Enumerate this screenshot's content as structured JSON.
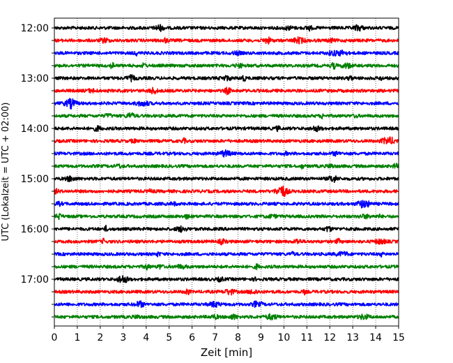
{
  "chart_data": {
    "type": "line",
    "title": "",
    "xlabel": "Zeit  [min]",
    "ylabel": "UTC (Lokalzeit = UTC + 02:00)",
    "xlim": [
      0,
      15
    ],
    "x_ticks": [
      "0",
      "1",
      "2",
      "3",
      "4",
      "5",
      "6",
      "7",
      "8",
      "9",
      "10",
      "11",
      "12",
      "13",
      "14",
      "15"
    ],
    "y_ticks": [
      "12:00",
      "13:00",
      "14:00",
      "15:00",
      "16:00",
      "17:00"
    ],
    "grid": "vertical-dotted",
    "minutes_per_trace": 15,
    "colors": [
      "#000000",
      "#ff0000",
      "#0000ff",
      "#008000"
    ],
    "traces": [
      {
        "start": "12:00",
        "color": "#000000"
      },
      {
        "start": "12:15",
        "color": "#ff0000"
      },
      {
        "start": "12:30",
        "color": "#0000ff"
      },
      {
        "start": "12:45",
        "color": "#008000"
      },
      {
        "start": "13:00",
        "color": "#000000"
      },
      {
        "start": "13:15",
        "color": "#ff0000"
      },
      {
        "start": "13:30",
        "color": "#0000ff"
      },
      {
        "start": "13:45",
        "color": "#008000"
      },
      {
        "start": "14:00",
        "color": "#000000"
      },
      {
        "start": "14:15",
        "color": "#ff0000"
      },
      {
        "start": "14:30",
        "color": "#0000ff"
      },
      {
        "start": "14:45",
        "color": "#008000"
      },
      {
        "start": "15:00",
        "color": "#000000"
      },
      {
        "start": "15:15",
        "color": "#ff0000",
        "event_minute": 9.9
      },
      {
        "start": "15:30",
        "color": "#0000ff"
      },
      {
        "start": "15:45",
        "color": "#008000"
      },
      {
        "start": "16:00",
        "color": "#000000"
      },
      {
        "start": "16:15",
        "color": "#ff0000"
      },
      {
        "start": "16:30",
        "color": "#0000ff"
      },
      {
        "start": "16:45",
        "color": "#008000"
      },
      {
        "start": "17:00",
        "color": "#000000"
      },
      {
        "start": "17:15",
        "color": "#ff0000"
      },
      {
        "start": "17:30",
        "color": "#0000ff"
      },
      {
        "start": "17:45",
        "color": "#008000"
      }
    ]
  }
}
